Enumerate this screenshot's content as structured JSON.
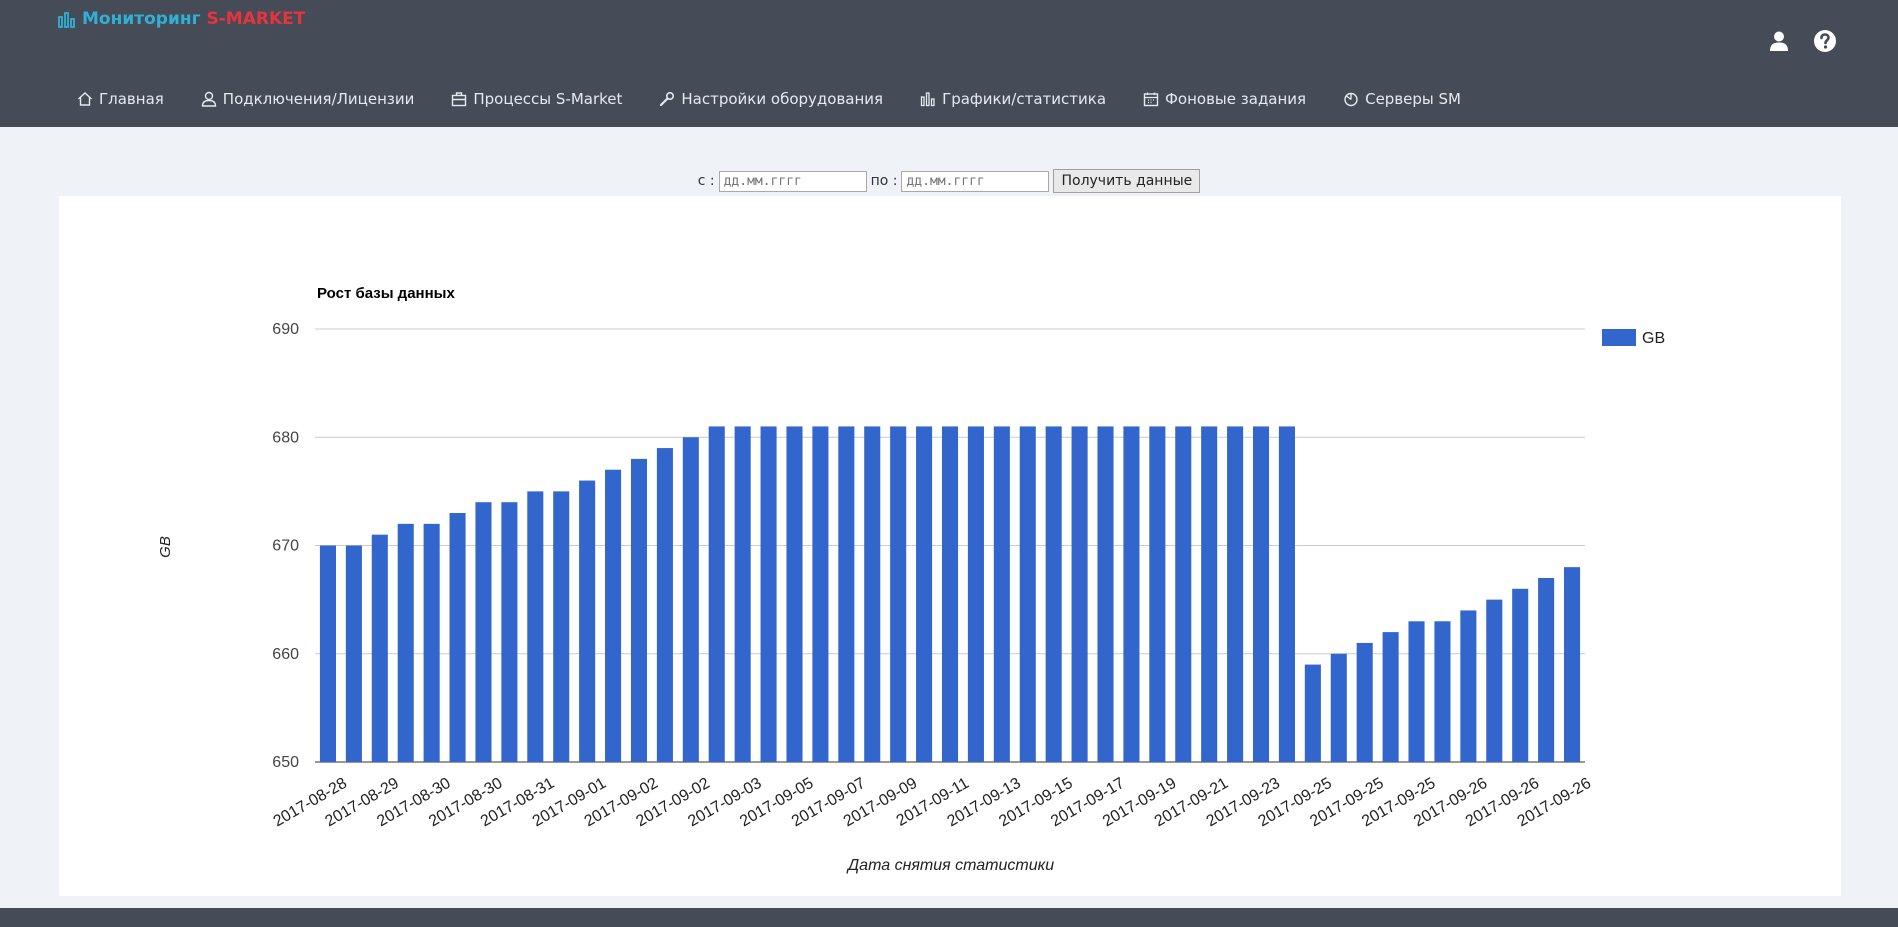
{
  "header": {
    "brand_a": "Мониторинг",
    "brand_b": "S-MARKET",
    "user_icon": "user-icon",
    "help_icon": "help-icon"
  },
  "nav": [
    {
      "label": "Главная",
      "icon": "home-icon"
    },
    {
      "label": "Подключения/Лицензии",
      "icon": "user-outline-icon"
    },
    {
      "label": "Процессы S-Market",
      "icon": "briefcase-icon"
    },
    {
      "label": "Настройки оборудования",
      "icon": "wrench-icon"
    },
    {
      "label": "Графики/статистика",
      "icon": "bar-chart-icon"
    },
    {
      "label": "Фоновые задания",
      "icon": "calendar-icon"
    },
    {
      "label": "Серверы SM",
      "icon": "pie-chart-icon"
    }
  ],
  "filter": {
    "from_label": "с :",
    "from_placeholder": "дд.мм.гггг",
    "to_label": "по :",
    "to_placeholder": "дд.мм.гггг",
    "submit_label": "Получить данные"
  },
  "colors": {
    "header_bg": "#454c57",
    "brand_a": "#31b0d5",
    "brand_b": "#e8333d",
    "bar": "#3366cc"
  },
  "chart_data": {
    "type": "bar",
    "title": "Рост базы данных",
    "xlabel": "Дата снятия статистики",
    "ylabel": "GB",
    "ylim": [
      650,
      690
    ],
    "yticks": [
      650,
      660,
      670,
      680,
      690
    ],
    "grid": true,
    "legend_position": "right",
    "series": [
      {
        "name": "GB",
        "values": [
          670,
          670,
          671,
          672,
          672,
          673,
          674,
          674,
          675,
          675,
          676,
          677,
          678,
          679,
          680,
          681,
          681,
          681,
          681,
          681,
          681,
          681,
          681,
          681,
          681,
          681,
          681,
          681,
          681,
          681,
          681,
          681,
          681,
          681,
          681,
          681,
          681,
          681,
          659,
          660,
          661,
          662,
          663,
          663,
          664,
          665,
          666,
          667,
          668
        ]
      }
    ],
    "tick_labels": [
      "2017-08-28",
      "2017-08-29",
      "2017-08-30",
      "2017-08-30",
      "2017-08-31",
      "2017-09-01",
      "2017-09-02",
      "2017-09-02",
      "2017-09-03",
      "2017-09-05",
      "2017-09-07",
      "2017-09-09",
      "2017-09-11",
      "2017-09-13",
      "2017-09-15",
      "2017-09-17",
      "2017-09-19",
      "2017-09-21",
      "2017-09-23",
      "2017-09-25",
      "2017-09-25",
      "2017-09-25",
      "2017-09-26",
      "2017-09-26",
      "2017-09-26"
    ]
  }
}
